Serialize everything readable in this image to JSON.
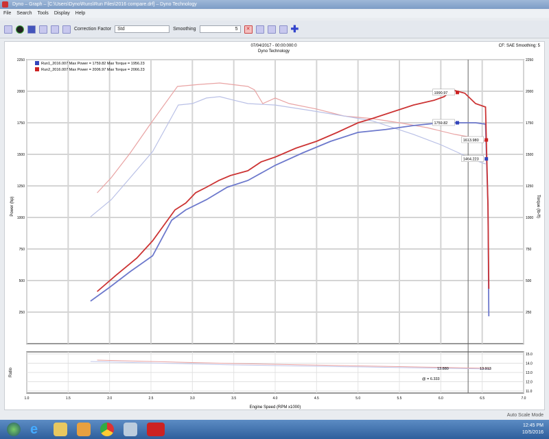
{
  "window": {
    "title": "Dyno – Graph – [C:\\Users\\Dyno\\Runs\\Run Files\\2016 compare.drf] – Dyno Technology"
  },
  "menu": [
    "File",
    "Search",
    "Tools",
    "Display",
    "Help"
  ],
  "toolbar": {
    "correction_label": "Correction Factor",
    "correction_value": "Std",
    "smoothing_label": "Smoothing",
    "smoothing_value": "5"
  },
  "chart_header": {
    "line1": "07/04/2017 - 00:00:000:0",
    "line2": "Dyno Technology",
    "right": "CF: SAE   Smoothing: 5"
  },
  "legend": [
    {
      "label": "Run1_2016.007 Max Power = 1759.82 Max Torque = 1956.23",
      "color": "#3344bb"
    },
    {
      "label": "Run2_2016.007 Max Power = 2006.97 Max Torque = 2066.23",
      "color": "#cc2222"
    }
  ],
  "chart_data": {
    "type": "line",
    "xlabel": "Engine Speed (RPM x1000)",
    "ylabel_left": "Power (hp)",
    "ylabel_right": "Torque (lb-ft)",
    "xlim": [
      1.0,
      7.0
    ],
    "ylim": [
      0,
      2250
    ],
    "x_ticks": [
      "1.0",
      "1.5",
      "2.0",
      "2.5",
      "3.0",
      "3.5",
      "4.0",
      "4.5",
      "5.0",
      "5.5",
      "6.0",
      "6.5",
      "7.0"
    ],
    "y_ticks": [
      "250",
      "500",
      "750",
      "1000",
      "1250",
      "1500",
      "1750",
      "2000",
      "2250"
    ],
    "grid": true,
    "legend": "top-left",
    "series": [
      {
        "id": "run2-torque",
        "color": "#e9a3a3",
        "x": [
          1.85,
          2.02,
          2.25,
          2.52,
          2.82,
          3.08,
          3.33,
          3.67,
          3.75,
          3.85,
          4.0,
          4.17,
          4.5,
          4.83,
          5.17,
          5.5,
          5.83,
          6.17,
          6.42,
          6.54
        ],
        "y": [
          1195,
          1315,
          1511,
          1766,
          2038,
          2054,
          2065,
          2038,
          2011,
          1902,
          1946,
          1902,
          1859,
          1804,
          1783,
          1750,
          1712,
          1658,
          1630,
          1603
        ]
      },
      {
        "id": "run1-torque",
        "color": "#b9c0e6",
        "x": [
          1.77,
          2.02,
          2.25,
          2.52,
          2.83,
          3.0,
          3.17,
          3.33,
          3.5,
          3.67,
          4.0,
          4.42,
          4.83,
          5.17,
          5.67,
          6.0,
          6.42,
          6.54
        ],
        "y": [
          1005,
          1141,
          1315,
          1522,
          1891,
          1902,
          1946,
          1957,
          1929,
          1902,
          1891,
          1848,
          1804,
          1766,
          1658,
          1576,
          1451,
          1424
        ]
      },
      {
        "id": "run1-power",
        "color": "#6c78cc",
        "x": [
          1.77,
          2.0,
          2.25,
          2.52,
          2.75,
          2.92,
          3.17,
          3.42,
          3.67,
          4.0,
          4.33,
          4.67,
          5.0,
          5.33,
          5.67,
          6.0,
          6.42,
          6.54,
          6.57,
          6.58
        ],
        "y": [
          337,
          446,
          571,
          696,
          978,
          1060,
          1141,
          1239,
          1293,
          1413,
          1511,
          1603,
          1674,
          1696,
          1728,
          1750,
          1750,
          1739,
          1087,
          217
        ]
      },
      {
        "id": "run2-power",
        "color": "#cc3333",
        "x": [
          1.85,
          2.08,
          2.33,
          2.52,
          2.79,
          2.92,
          3.04,
          3.17,
          3.32,
          3.46,
          3.67,
          3.83,
          4.0,
          4.25,
          4.5,
          4.75,
          5.0,
          5.17,
          5.42,
          5.67,
          5.92,
          6.04,
          6.14,
          6.29,
          6.42,
          6.54,
          6.57,
          6.58
        ],
        "y": [
          413,
          543,
          679,
          815,
          1060,
          1114,
          1196,
          1239,
          1293,
          1332,
          1370,
          1440,
          1478,
          1549,
          1603,
          1674,
          1750,
          1783,
          1837,
          1891,
          1929,
          1957,
          2011,
          1984,
          1902,
          1875,
          1087,
          435
        ]
      }
    ],
    "cursor_rpm": 6.33,
    "markers": [
      {
        "label": "1990.97",
        "color": "#cc2222",
        "x": 6.2,
        "y": 1990
      },
      {
        "label": "1759.82",
        "color": "#3344bb",
        "x": 6.2,
        "y": 1750
      },
      {
        "label": "1613.980",
        "color": "#cc2222",
        "x": 6.55,
        "y": 1614
      },
      {
        "label": "1464.223",
        "color": "#3344bb",
        "x": 6.55,
        "y": 1464
      }
    ],
    "sub": {
      "ylabel": "Ratio",
      "ticks": [
        "15.0",
        "14.0",
        "13.0",
        "12.0",
        "11.0"
      ],
      "markers": [
        "13.880",
        "13.913"
      ],
      "cursor_label": "@ = 6.333"
    }
  },
  "status": {
    "mode": "Auto Scale Mode"
  },
  "tray": {
    "time": "12:45 PM",
    "date": "10/5/2016"
  }
}
